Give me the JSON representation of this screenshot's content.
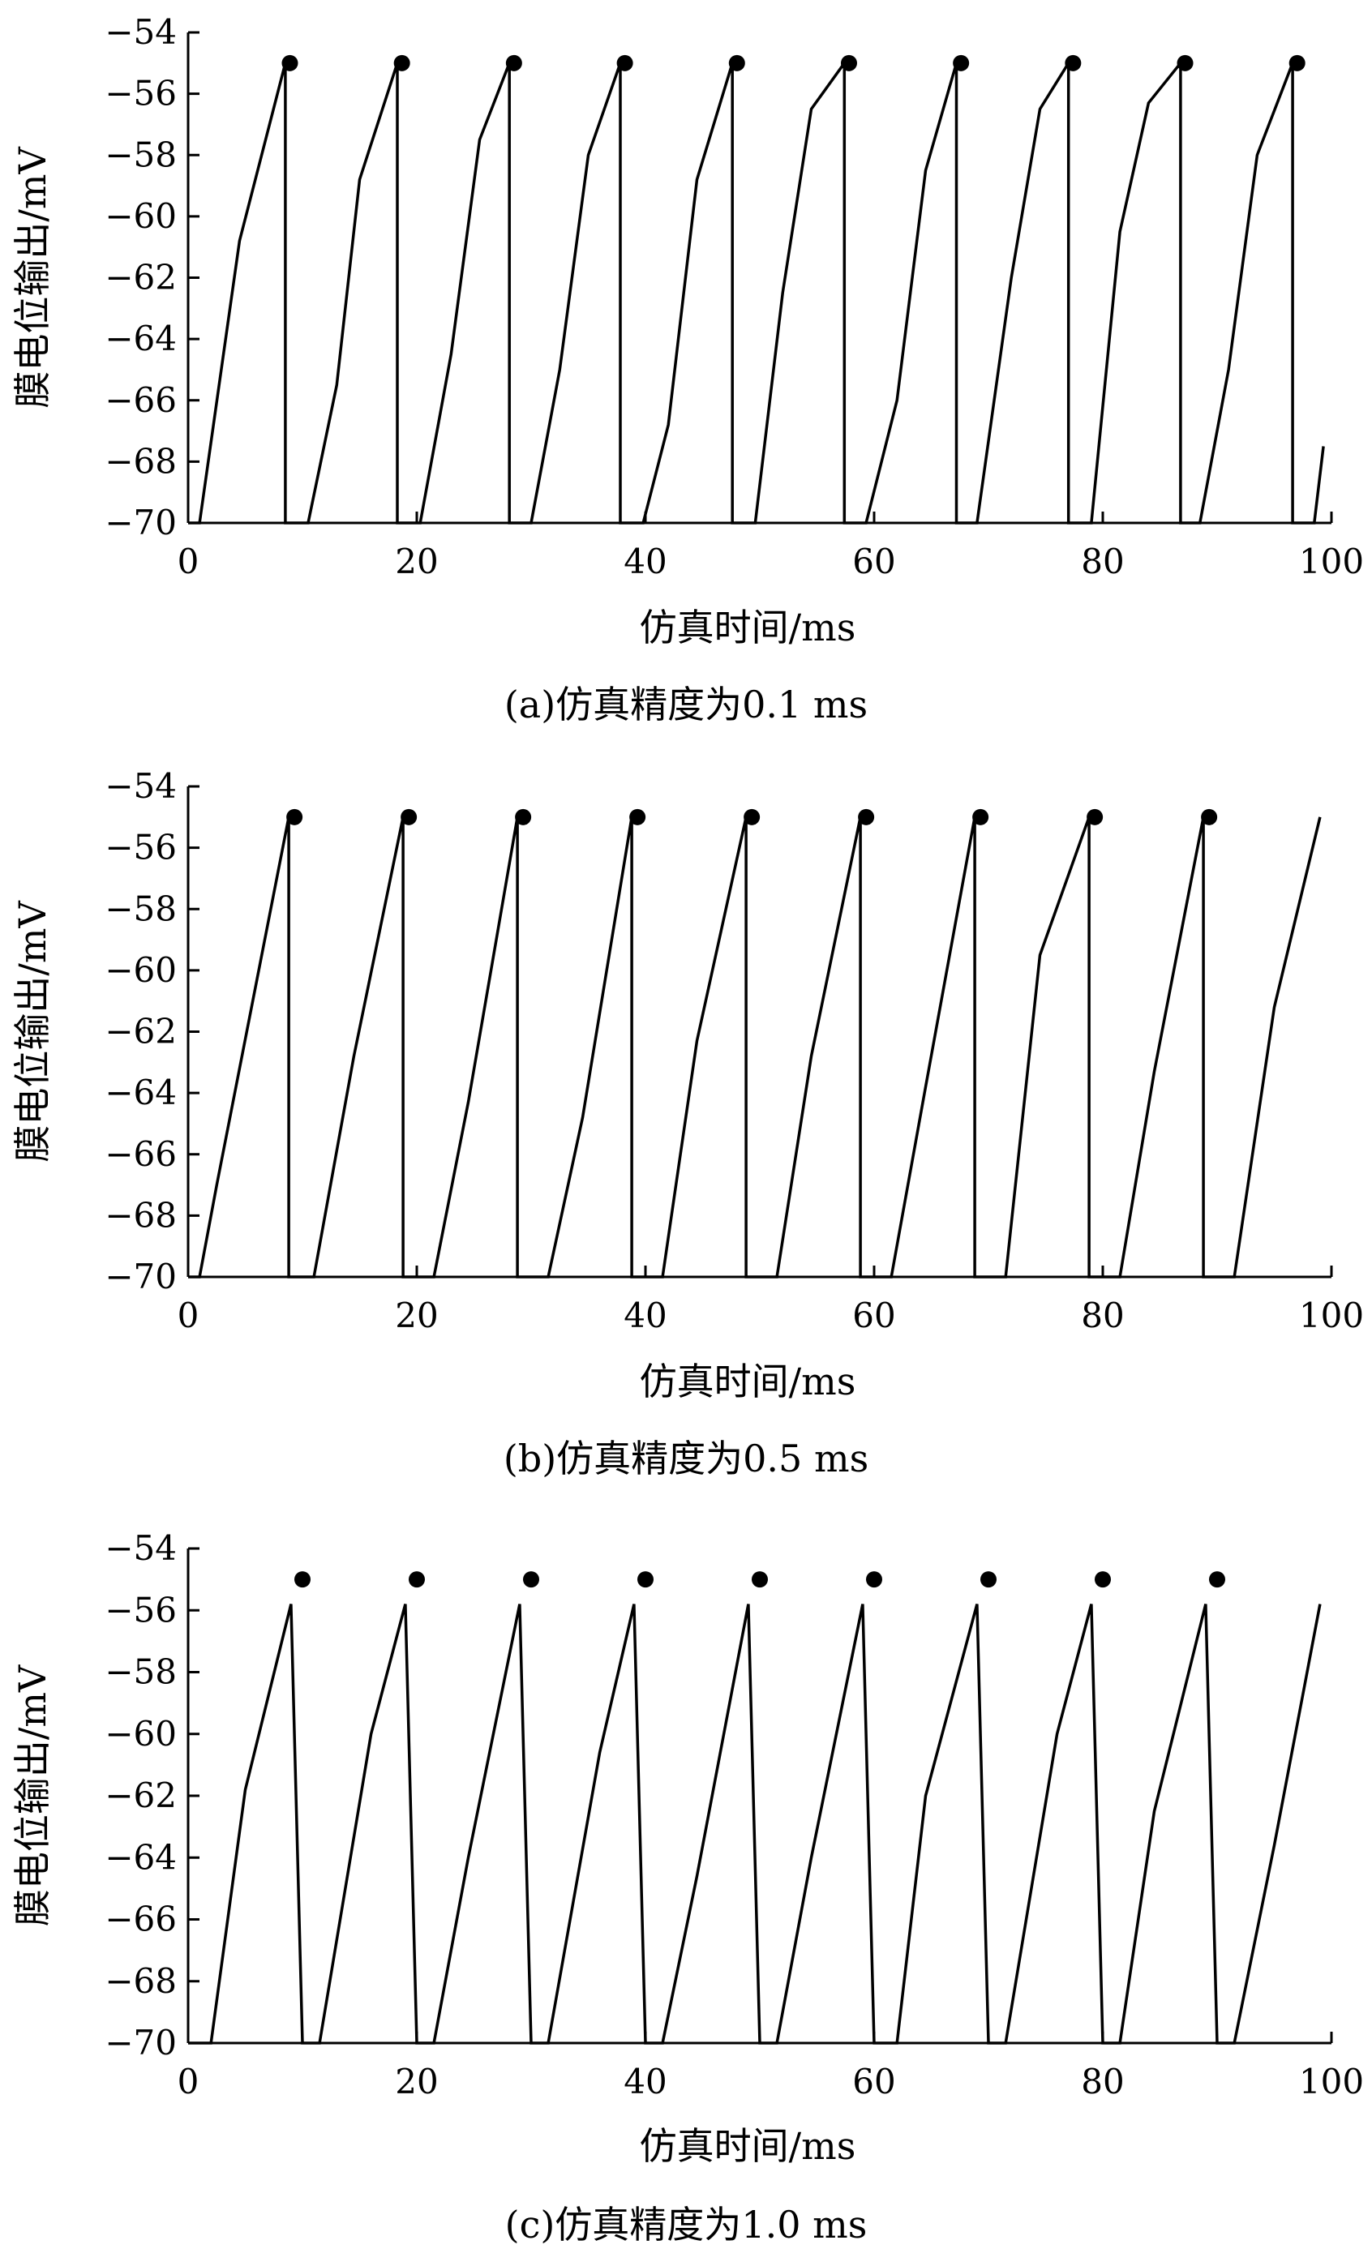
{
  "colors": {
    "line": "#000000",
    "background": "#ffffff"
  },
  "chart_data": [
    {
      "type": "line",
      "caption": "(a)仿真精度为0.1 ms",
      "xlabel": "仿真时间/ms",
      "ylabel": "膜电位输出/mV",
      "xlim": [
        0,
        100
      ],
      "ylim": [
        -70,
        -54
      ],
      "xticks": [
        "0",
        "20",
        "40",
        "60",
        "80",
        "100"
      ],
      "yticks": [
        "−70",
        "−68",
        "−66",
        "−64",
        "−62",
        "−60",
        "−58",
        "−56",
        "−54"
      ],
      "grid": false,
      "series": [
        {
          "style": "line",
          "x": [
            0,
            1,
            4.5,
            8.5,
            8.5,
            10.5,
            13,
            15,
            18.3,
            18.3,
            20.3,
            23,
            25.5,
            28.1,
            28.1,
            30,
            32.5,
            35,
            37.8,
            37.8,
            39.8,
            42,
            44.5,
            47.6,
            47.6,
            49.6,
            52,
            54.5,
            57.4,
            57.4,
            59.3,
            62,
            64.5,
            67.2,
            67.2,
            69,
            72,
            74.5,
            77,
            77,
            79,
            81.5,
            84,
            86.8,
            86.8,
            88.5,
            91,
            93.5,
            96.6,
            96.6,
            98.5,
            99.3
          ],
          "y": [
            -70,
            -70,
            -60.8,
            -55,
            -70,
            -70,
            -65.5,
            -58.8,
            -55,
            -70,
            -70,
            -64.5,
            -57.5,
            -55,
            -70,
            -70,
            -65,
            -58,
            -55,
            -70,
            -70,
            -66.8,
            -58.8,
            -55,
            -70,
            -70,
            -62.5,
            -56.5,
            -55,
            -70,
            -70,
            -66,
            -58.5,
            -55,
            -70,
            -70,
            -62,
            -56.5,
            -55,
            -70,
            -70,
            -60.5,
            -56.3,
            -55,
            -70,
            -70,
            -65,
            -58,
            -55,
            -70,
            -70,
            -67.5
          ]
        },
        {
          "style": "markers",
          "x": [
            8.9,
            18.7,
            28.5,
            38.2,
            48,
            57.8,
            67.6,
            77.4,
            87.2,
            97
          ],
          "y": [
            -55,
            -55,
            -55,
            -55,
            -55,
            -55,
            -55,
            -55,
            -55,
            -55
          ]
        }
      ]
    },
    {
      "type": "line",
      "caption": "(b)仿真精度为0.5 ms",
      "xlabel": "仿真时间/ms",
      "ylabel": "膜电位输出/mV",
      "xlim": [
        0,
        100
      ],
      "ylim": [
        -70,
        -54
      ],
      "xticks": [
        "0",
        "20",
        "40",
        "60",
        "80",
        "100"
      ],
      "yticks": [
        "−70",
        "−68",
        "−66",
        "−64",
        "−62",
        "−60",
        "−58",
        "−56",
        "−54"
      ],
      "grid": false,
      "series": [
        {
          "style": "line",
          "x": [
            0,
            1,
            2.5,
            8.8,
            8.8,
            9.5,
            11,
            14.5,
            18.8,
            18.8,
            19.5,
            21.5,
            24.5,
            28.8,
            28.8,
            29.5,
            31.5,
            34.5,
            38.8,
            38.8,
            39.5,
            41.5,
            44.5,
            48.8,
            48.8,
            49.5,
            51.5,
            54.5,
            58.8,
            58.8,
            59.5,
            61.5,
            64.5,
            68.8,
            68.8,
            69.5,
            71.5,
            74.5,
            78.8,
            78.8,
            79.5,
            81.5,
            84.5,
            88.8,
            88.8,
            89.5,
            91.5,
            95,
            99
          ],
          "y": [
            -70,
            -70,
            -67,
            -55,
            -70,
            -70,
            -70,
            -62.8,
            -55,
            -70,
            -70,
            -70,
            -64.3,
            -55,
            -70,
            -70,
            -70,
            -64.8,
            -55,
            -70,
            -70,
            -70,
            -62.3,
            -55,
            -70,
            -70,
            -70,
            -62.8,
            -55,
            -70,
            -70,
            -70,
            -63.8,
            -55,
            -70,
            -70,
            -70,
            -59.5,
            -55,
            -70,
            -70,
            -70,
            -63.3,
            -55,
            -70,
            -70,
            -70,
            -61.2,
            -55
          ]
        },
        {
          "style": "markers",
          "x": [
            9.3,
            19.3,
            29.3,
            39.3,
            49.3,
            59.3,
            69.3,
            79.3,
            89.3
          ],
          "y": [
            -55,
            -55,
            -55,
            -55,
            -55,
            -55,
            -55,
            -55,
            -55
          ]
        }
      ]
    },
    {
      "type": "line",
      "caption": "(c)仿真精度为1.0 ms",
      "xlabel": "仿真时间/ms",
      "ylabel": "膜电位输出/mV",
      "xlim": [
        0,
        100
      ],
      "ylim": [
        -70,
        -54
      ],
      "xticks": [
        "0",
        "20",
        "40",
        "60",
        "80",
        "100"
      ],
      "yticks": [
        "−70",
        "−68",
        "−66",
        "−64",
        "−62",
        "−60",
        "−58",
        "−56",
        "−54"
      ],
      "grid": false,
      "series": [
        {
          "style": "line",
          "x": [
            0,
            2,
            5,
            9,
            10,
            11.5,
            16,
            19,
            20,
            21.5,
            24.5,
            29,
            30,
            31.5,
            36,
            39,
            40,
            41.5,
            44.5,
            49,
            50,
            51.5,
            54.5,
            59,
            60,
            62,
            64.5,
            69,
            70,
            71.5,
            76,
            79,
            80,
            81.5,
            84.5,
            89,
            90,
            91.5,
            95,
            99
          ],
          "y": [
            -70,
            -70,
            -61.8,
            -55.8,
            -70,
            -70,
            -60,
            -55.8,
            -70,
            -70,
            -64,
            -55.8,
            -70,
            -70,
            -60.6,
            -55.8,
            -70,
            -70,
            -64.6,
            -55.8,
            -70,
            -70,
            -64,
            -55.8,
            -70,
            -70,
            -62,
            -55.8,
            -70,
            -70,
            -60,
            -55.8,
            -70,
            -70,
            -62.5,
            -55.8,
            -70,
            -70,
            -63.6,
            -55.8
          ]
        },
        {
          "style": "markers",
          "x": [
            10,
            20,
            30,
            40,
            50,
            60,
            70,
            80,
            90
          ],
          "y": [
            -55,
            -55,
            -55,
            -55,
            -55,
            -55,
            -55,
            -55,
            -55
          ]
        }
      ]
    }
  ]
}
